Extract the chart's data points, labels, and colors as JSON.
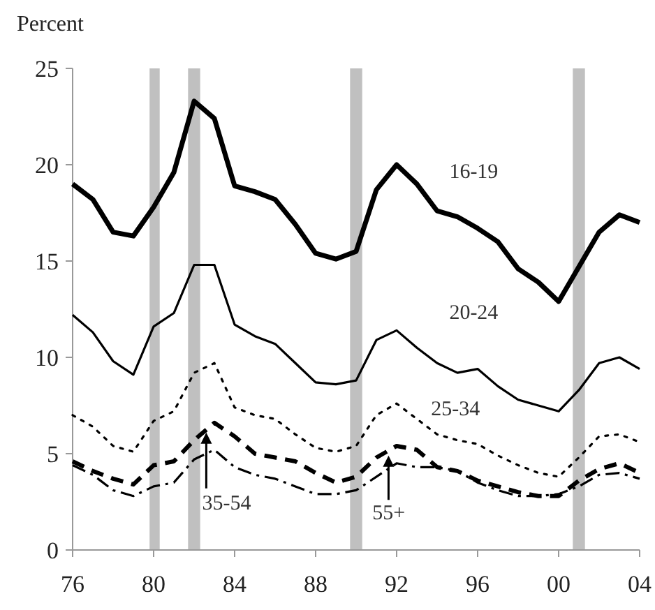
{
  "chart_data": {
    "type": "line",
    "ylabel": "Percent",
    "x": [
      1976,
      1977,
      1978,
      1979,
      1980,
      1981,
      1982,
      1983,
      1984,
      1985,
      1986,
      1987,
      1988,
      1989,
      1990,
      1991,
      1992,
      1993,
      1994,
      1995,
      1996,
      1997,
      1998,
      1999,
      2000,
      2001,
      2002,
      2003,
      2004
    ],
    "xlim": [
      1976,
      2004
    ],
    "xticks": [
      {
        "value": 1976,
        "label": "76"
      },
      {
        "value": 1980,
        "label": "80"
      },
      {
        "value": 1984,
        "label": "84"
      },
      {
        "value": 1988,
        "label": "88"
      },
      {
        "value": 1992,
        "label": "92"
      },
      {
        "value": 1996,
        "label": "96"
      },
      {
        "value": 2000,
        "label": "00"
      },
      {
        "value": 2004,
        "label": "04"
      }
    ],
    "ylim": [
      0,
      25
    ],
    "yticks": [
      0,
      5,
      10,
      15,
      20,
      25
    ],
    "grid": false,
    "marker": "none",
    "series": [
      {
        "name": "16-19",
        "color": "#000000",
        "line_style": "solid",
        "values": [
          19.0,
          18.2,
          16.5,
          16.3,
          17.8,
          19.6,
          23.3,
          22.4,
          18.9,
          18.6,
          18.2,
          16.9,
          15.4,
          15.1,
          15.5,
          18.7,
          20.0,
          19.0,
          17.6,
          17.3,
          16.7,
          16.0,
          14.6,
          13.9,
          12.9,
          14.7,
          16.5,
          17.4,
          17.0
        ]
      },
      {
        "name": "20-24",
        "color": "#000000",
        "line_style": "solid",
        "values": [
          12.2,
          11.3,
          9.8,
          9.1,
          11.6,
          12.3,
          14.8,
          14.8,
          11.7,
          11.1,
          10.7,
          9.7,
          8.7,
          8.6,
          8.8,
          10.9,
          11.4,
          10.5,
          9.7,
          9.2,
          9.4,
          8.5,
          7.8,
          7.5,
          7.2,
          8.3,
          9.7,
          10.0,
          9.4
        ]
      },
      {
        "name": "25-34",
        "color": "#000000",
        "line_style": "dotted",
        "values": [
          7.0,
          6.4,
          5.4,
          5.1,
          6.7,
          7.2,
          9.2,
          9.7,
          7.4,
          7.0,
          6.8,
          6.0,
          5.3,
          5.1,
          5.4,
          7.0,
          7.6,
          6.8,
          6.0,
          5.7,
          5.5,
          4.9,
          4.4,
          4.0,
          3.8,
          4.8,
          5.9,
          6.0,
          5.6
        ]
      },
      {
        "color": "#000000",
        "line_style": "dashed",
        "values": [
          4.6,
          4.1,
          3.7,
          3.4,
          4.4,
          4.6,
          5.7,
          6.6,
          5.9,
          5.0,
          4.8,
          4.6,
          4.0,
          3.5,
          3.8,
          4.8,
          5.4,
          5.2,
          4.3,
          4.1,
          3.6,
          3.3,
          3.0,
          2.8,
          2.8,
          3.6,
          4.2,
          4.5,
          4.0
        ]
      },
      {
        "color": "#000000",
        "line_style": "dashdot",
        "values": [
          4.4,
          3.9,
          3.1,
          2.8,
          3.3,
          3.5,
          4.7,
          5.2,
          4.3,
          3.9,
          3.7,
          3.3,
          2.9,
          2.9,
          3.1,
          3.8,
          4.5,
          4.3,
          4.3,
          4.1,
          3.5,
          3.1,
          2.8,
          2.8,
          2.9,
          3.3,
          3.9,
          4.0,
          3.7
        ]
      }
    ],
    "annotations": [
      {
        "text": "35-54",
        "x": 1982.6,
        "y": 6.1
      },
      {
        "text": "55+",
        "x": 1991.6,
        "y": 4.9
      }
    ],
    "bands": [
      {
        "axis": "x",
        "from": 1979.8,
        "to": 1980.3,
        "color": "#c0c0c0"
      },
      {
        "axis": "x",
        "from": 1981.7,
        "to": 1982.3,
        "color": "#c0c0c0"
      },
      {
        "axis": "x",
        "from": 1989.7,
        "to": 1990.3,
        "color": "#c0c0c0"
      },
      {
        "axis": "x",
        "from": 2000.7,
        "to": 2001.3,
        "color": "#c0c0c0"
      }
    ]
  }
}
